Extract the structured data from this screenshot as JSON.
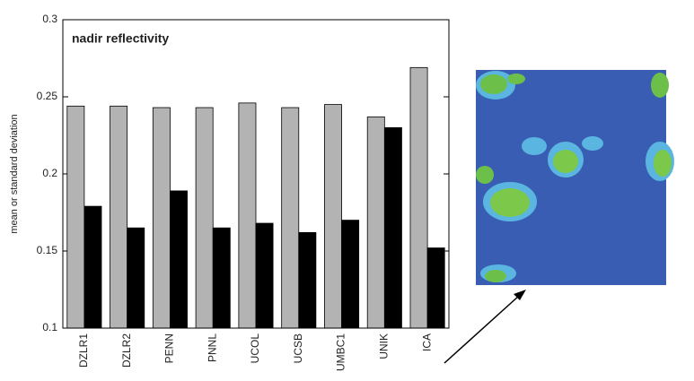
{
  "chart_data": {
    "type": "bar",
    "title": "nadir reflectivity",
    "y_label": "mean or standard deviation",
    "categories": [
      "DZLR1",
      "DZLR2",
      "PENN",
      "PNNL",
      "UCOL",
      "UCSB",
      "UMBC1",
      "UNIK",
      "ICA"
    ],
    "series": [
      {
        "color": "#b3b3b3",
        "values": [
          0.244,
          0.244,
          0.243,
          0.243,
          0.246,
          0.243,
          0.245,
          0.237,
          0.269
        ]
      },
      {
        "color": "#000000",
        "values": [
          0.179,
          0.165,
          0.189,
          0.165,
          0.168,
          0.162,
          0.17,
          0.23,
          0.152
        ]
      }
    ],
    "ylim": [
      0.1,
      0.3
    ],
    "yticks": [
      0.1,
      0.15,
      0.2,
      0.25,
      0.3
    ]
  }
}
